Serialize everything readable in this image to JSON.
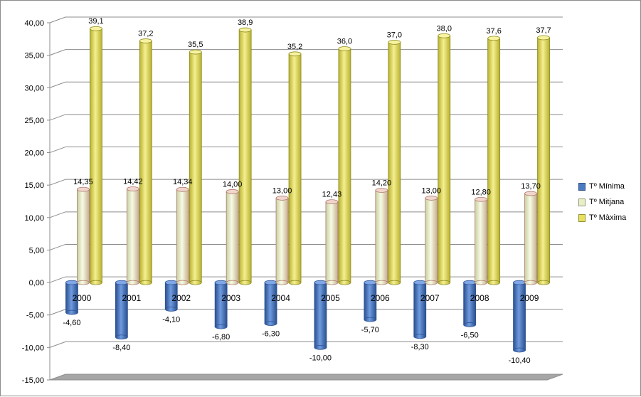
{
  "chart_data": {
    "type": "bar",
    "categories": [
      "2000",
      "2001",
      "2002",
      "2003",
      "2004",
      "2005",
      "2006",
      "2007",
      "2008",
      "2009"
    ],
    "series": [
      {
        "name": "Tº Mínima",
        "color": "#4a7cc4",
        "values": [
          -4.6,
          -8.4,
          -4.1,
          -6.8,
          -6.3,
          -10.0,
          -5.7,
          -8.3,
          -6.5,
          -10.4
        ],
        "labels": [
          "-4,60",
          "-8,40",
          "-4,10",
          "-6,80",
          "-6,30",
          "-10,00",
          "-5,70",
          "-8,30",
          "-6,50",
          "-10,40"
        ]
      },
      {
        "name": "Tº Mitjana",
        "color": "#e8efc4",
        "values": [
          14.35,
          14.42,
          14.34,
          14.0,
          13.0,
          12.43,
          14.2,
          13.0,
          12.8,
          13.7
        ],
        "labels": [
          "14,35",
          "14,42",
          "14,34",
          "14,00",
          "13,00",
          "12,43",
          "14,20",
          "13,00",
          "12,80",
          "13,70"
        ]
      },
      {
        "name": "Tº Màxima",
        "color": "#e6e05a",
        "values": [
          39.1,
          37.2,
          35.5,
          38.9,
          35.2,
          36.0,
          37.0,
          38.0,
          37.6,
          37.7
        ],
        "labels": [
          "39,1",
          "37,2",
          "35,5",
          "38,9",
          "35,2",
          "36,0",
          "37,0",
          "38,0",
          "37,6",
          "37,7"
        ]
      }
    ],
    "yticks": [
      "-15,00",
      "-10,00",
      "-5,00",
      "0,00",
      "5,00",
      "10,00",
      "15,00",
      "20,00",
      "25,00",
      "30,00",
      "35,00",
      "40,00"
    ],
    "ylim": [
      -15,
      40
    ],
    "grid": true,
    "legend_position": "right",
    "style": "3d-cylinder"
  }
}
